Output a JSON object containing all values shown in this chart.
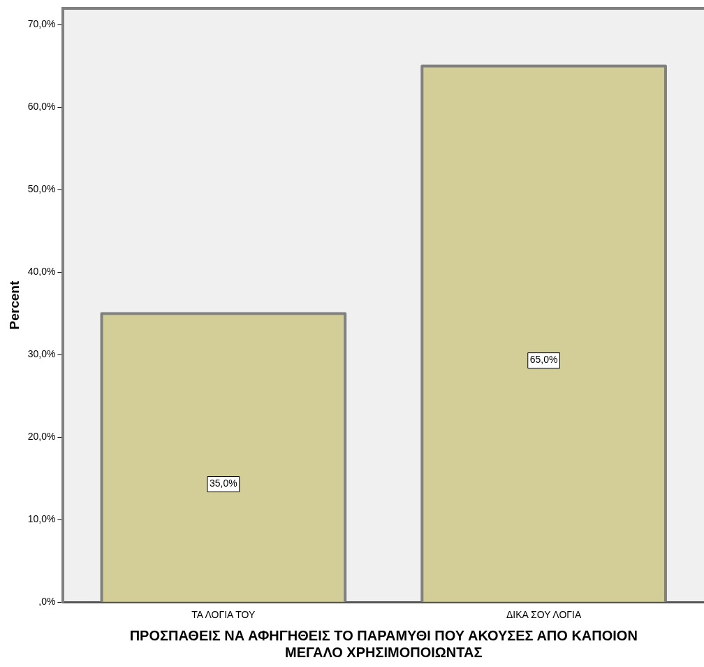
{
  "chart_data": {
    "type": "bar",
    "xlabel": "ΠΡΟΣΠΑΘΕΙΣ ΝΑ ΑΦΗΓΗΘΕΙΣ ΤΟ ΠΑΡΑΜΥΘΙ ΠΟΥ ΑΚΟΥΣΕΣ ΑΠΟ ΚΑΠΟΙΟΝ ΜΕΓΑΛΟ ΧΡΗΣΙΜΟΠΟΙΩΝΤΑΣ",
    "ylabel": "Percent",
    "categories": [
      "ΤΑ ΛΟΓΙΑ ΤΟΥ",
      "ΔΙΚΑ ΣΟΥ ΛΟΓΙΑ"
    ],
    "values": [
      35,
      65
    ],
    "value_labels": [
      "35,0%",
      "65,0%"
    ],
    "color": "#d3ce97",
    "ylim": [
      0,
      72
    ],
    "yticks": [
      {
        "value": 0,
        "label": ",0%"
      },
      {
        "value": 10,
        "label": "10,0%"
      },
      {
        "value": 20,
        "label": "20,0%"
      },
      {
        "value": 30,
        "label": "30,0%"
      },
      {
        "value": 40,
        "label": "40,0%"
      },
      {
        "value": 50,
        "label": "50,0%"
      },
      {
        "value": 60,
        "label": "60,0%"
      },
      {
        "value": 70,
        "label": "70,0%"
      }
    ],
    "grid": false,
    "legend": false
  }
}
